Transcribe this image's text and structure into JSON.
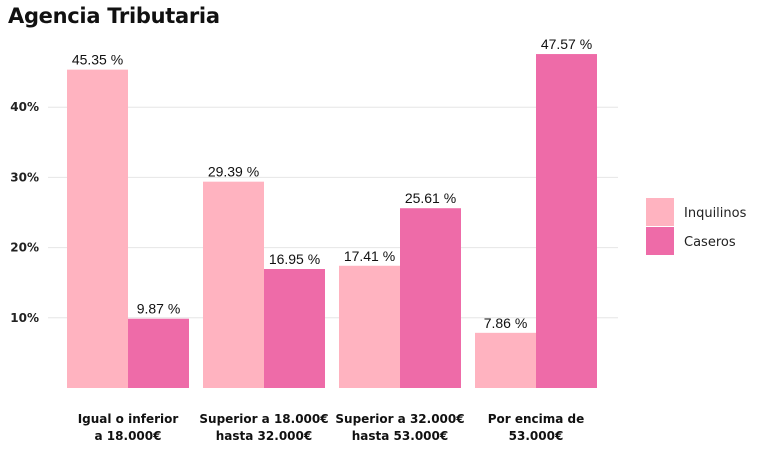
{
  "chart_data": {
    "type": "bar",
    "title": "Agencia Tributaria",
    "categories": [
      [
        "Igual o inferior",
        "a 18.000€"
      ],
      [
        "Superior a 18.000€",
        "hasta 32.000€"
      ],
      [
        "Superior a 32.000€",
        "hasta 53.000€"
      ],
      [
        "Por encima de",
        "53.000€"
      ]
    ],
    "series": [
      {
        "name": "Inquilinos",
        "color": "#ffb3c0",
        "values": [
          45.35,
          29.39,
          17.41,
          7.86
        ]
      },
      {
        "name": "Caseros",
        "color": "#ee6ba8",
        "values": [
          9.87,
          16.95,
          25.61,
          47.57
        ]
      }
    ],
    "data_labels": [
      [
        "45.35 %",
        "29.39 %",
        "17.41 %",
        "7.86 %"
      ],
      [
        "9.87 %",
        "16.95 %",
        "25.61 %",
        "47.57 %"
      ]
    ],
    "ylim": [
      0,
      50
    ],
    "yticks": [
      10,
      20,
      30,
      40
    ],
    "ytick_labels": [
      "10%",
      "20%",
      "30%",
      "40%"
    ],
    "grid": true,
    "legend_position": "right"
  }
}
